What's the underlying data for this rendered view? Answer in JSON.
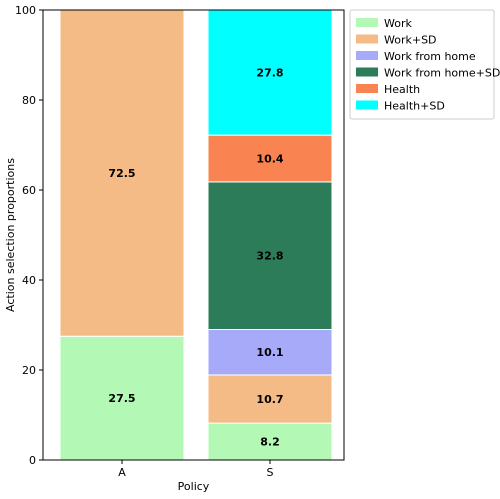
{
  "chart_data": {
    "type": "bar",
    "stacked": true,
    "categories": [
      "A",
      "S"
    ],
    "xlabel": "Policy",
    "ylabel": "Action selection proportions",
    "ylim": [
      0,
      100
    ],
    "yticks": [
      0,
      20,
      40,
      60,
      80,
      100
    ],
    "grid": false,
    "legend_position": "upper-right outside",
    "series": [
      {
        "name": "Work",
        "color": "#b3f9b5",
        "values": [
          27.5,
          8.2
        ],
        "labels": [
          "27.5",
          "8.2"
        ]
      },
      {
        "name": "Work+SD",
        "color": "#f5bb86",
        "values": [
          72.5,
          10.7
        ],
        "labels": [
          "72.5",
          "10.7"
        ]
      },
      {
        "name": "Work from home",
        "color": "#a6aaf8",
        "values": [
          0,
          10.1
        ],
        "labels": [
          "",
          "10.1"
        ]
      },
      {
        "name": "Work from home+SD",
        "color": "#2c7c5a",
        "values": [
          0,
          32.8
        ],
        "labels": [
          "",
          "32.8"
        ]
      },
      {
        "name": "Health",
        "color": "#fa8451",
        "values": [
          0,
          10.4
        ],
        "labels": [
          "",
          "10.4"
        ]
      },
      {
        "name": "Health+SD",
        "color": "#00ffff",
        "values": [
          0,
          27.8
        ],
        "labels": [
          "",
          "27.8"
        ]
      }
    ]
  }
}
